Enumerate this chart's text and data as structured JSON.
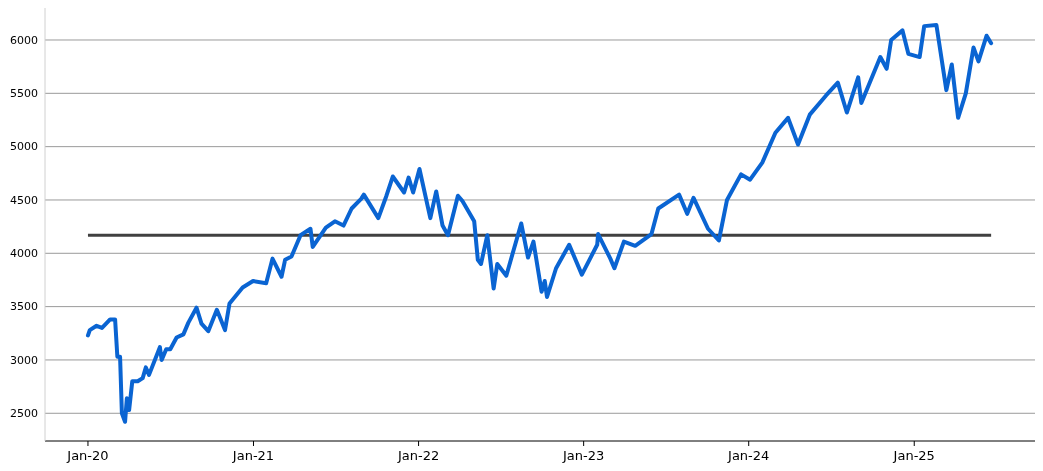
{
  "chart_data": {
    "type": "line",
    "xlim": [
      "2019-09-28",
      "2025-09-25"
    ],
    "xticks": [
      {
        "value": "2020-01-01",
        "label": "Jan-20"
      },
      {
        "value": "2021-01-01",
        "label": "Jan-21"
      },
      {
        "value": "2022-01-01",
        "label": "Jan-22"
      },
      {
        "value": "2023-01-01",
        "label": "Jan-23"
      },
      {
        "value": "2024-01-01",
        "label": "Jan-24"
      },
      {
        "value": "2025-01-01",
        "label": "Jan-25"
      }
    ],
    "ylim": [
      2240,
      6300
    ],
    "yticks": [
      2500,
      3000,
      3500,
      4000,
      4500,
      5000,
      5500,
      6000
    ],
    "grid": "y",
    "line_style": "solid",
    "ref_lines": [
      {
        "axis": "y",
        "value": 4170,
        "color": "#404040"
      }
    ],
    "x": [
      "2020-01-01",
      "2020-01-05",
      "2020-01-20",
      "2020-02-01",
      "2020-02-19",
      "2020-03-01",
      "2020-03-06",
      "2020-03-12",
      "2020-03-16",
      "2020-03-23",
      "2020-03-27",
      "2020-04-01",
      "2020-04-08",
      "2020-04-20",
      "2020-05-01",
      "2020-05-08",
      "2020-05-15",
      "2020-06-08",
      "2020-06-12",
      "2020-06-22",
      "2020-07-01",
      "2020-07-15",
      "2020-07-30",
      "2020-08-10",
      "2020-08-28",
      "2020-09-08",
      "2020-09-23",
      "2020-10-12",
      "2020-10-30",
      "2020-11-09",
      "2020-12-08",
      "2020-12-31",
      "2021-01-29",
      "2021-02-12",
      "2021-03-04",
      "2021-03-12",
      "2021-03-26",
      "2021-04-15",
      "2021-05-07",
      "2021-05-12",
      "2021-06-10",
      "2021-06-30",
      "2021-07-19",
      "2021-08-06",
      "2021-08-27",
      "2021-09-02",
      "2021-10-04",
      "2021-10-22",
      "2021-11-05",
      "2021-11-30",
      "2021-12-10",
      "2021-12-20",
      "2022-01-03",
      "2022-01-27",
      "2022-02-09",
      "2022-02-23",
      "2022-03-07",
      "2022-03-29",
      "2022-04-08",
      "2022-05-04",
      "2022-05-12",
      "2022-05-19",
      "2022-06-02",
      "2022-06-16",
      "2022-06-24",
      "2022-07-14",
      "2022-08-16",
      "2022-08-31",
      "2022-09-12",
      "2022-09-30",
      "2022-10-07",
      "2022-10-12",
      "2022-11-01",
      "2022-11-30",
      "2022-12-28",
      "2023-01-31",
      "2023-02-02",
      "2023-03-01",
      "2023-03-10",
      "2023-03-31",
      "2023-04-25",
      "2023-05-31",
      "2023-06-15",
      "2023-07-31",
      "2023-08-18",
      "2023-09-01",
      "2023-10-03",
      "2023-10-27",
      "2023-11-14",
      "2023-12-15",
      "2024-01-04",
      "2024-01-31",
      "2024-02-29",
      "2024-03-28",
      "2024-04-19",
      "2024-05-15",
      "2024-06-20",
      "2024-07-16",
      "2024-08-05",
      "2024-08-30",
      "2024-09-06",
      "2024-10-18",
      "2024-11-01",
      "2024-11-11",
      "2024-12-06",
      "2024-12-19",
      "2025-01-13",
      "2025-01-23",
      "2025-02-19",
      "2025-03-13",
      "2025-03-25",
      "2025-04-08",
      "2025-04-25",
      "2025-05-12",
      "2025-05-23",
      "2025-06-10",
      "2025-06-20"
    ],
    "series": [
      {
        "color": "#0a64d2",
        "values": [
          3230,
          3280,
          3320,
          3300,
          3380,
          3380,
          3030,
          3030,
          2500,
          2420,
          2640,
          2530,
          2800,
          2800,
          2830,
          2930,
          2860,
          3120,
          3000,
          3100,
          3100,
          3210,
          3240,
          3350,
          3490,
          3340,
          3270,
          3470,
          3280,
          3530,
          3680,
          3740,
          3720,
          3950,
          3780,
          3940,
          3970,
          4170,
          4230,
          4060,
          4240,
          4300,
          4260,
          4420,
          4510,
          4550,
          4330,
          4540,
          4720,
          4570,
          4710,
          4570,
          4790,
          4330,
          4580,
          4260,
          4170,
          4540,
          4490,
          4300,
          3940,
          3900,
          4170,
          3670,
          3900,
          3790,
          4280,
          3960,
          4110,
          3640,
          3740,
          3590,
          3860,
          4080,
          3800,
          4080,
          4180,
          3950,
          3860,
          4110,
          4070,
          4180,
          4420,
          4550,
          4370,
          4520,
          4230,
          4120,
          4500,
          4740,
          4690,
          4850,
          5130,
          5270,
          5020,
          5300,
          5480,
          5600,
          5320,
          5650,
          5410,
          5840,
          5730,
          6000,
          6090,
          5870,
          5840,
          6130,
          6140,
          5530,
          5770,
          5270,
          5500,
          5930,
          5800,
          6040,
          5970
        ]
      }
    ]
  }
}
